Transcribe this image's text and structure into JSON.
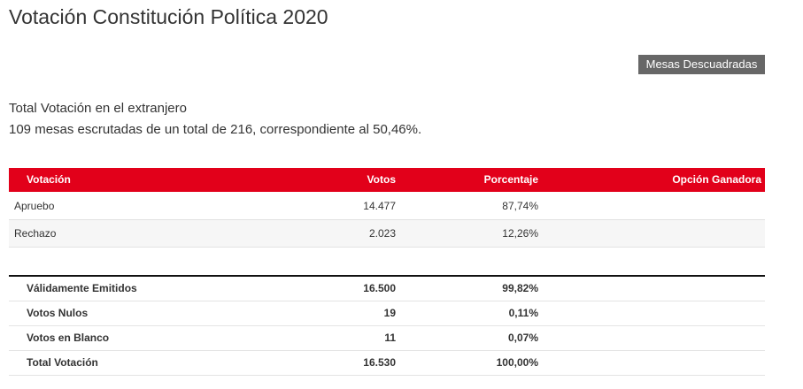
{
  "header": {
    "title": "Votación Constitución Política 2020",
    "button": "Mesas Descuadradas"
  },
  "info": {
    "line1": "Total Votación en el extranjero",
    "line2": "109 mesas escrutadas de un total de 216, correspondiente al 50,46%."
  },
  "table": {
    "columns": [
      "Votación",
      "Votos",
      "Porcentaje",
      "Opción Ganadora"
    ],
    "rows": [
      [
        "Apruebo",
        "14.477",
        "87,74%"
      ],
      [
        "Rechazo",
        "2.023",
        "12,26%"
      ]
    ]
  },
  "totals": {
    "rows": [
      [
        "Válidamente Emitidos",
        "16.500",
        "99,82%"
      ],
      [
        "Votos Nulos",
        "19",
        "0,11%"
      ],
      [
        "Votos en Blanco",
        "11",
        "0,07%"
      ],
      [
        "Total Votación",
        "16.530",
        "100,00%"
      ]
    ]
  }
}
